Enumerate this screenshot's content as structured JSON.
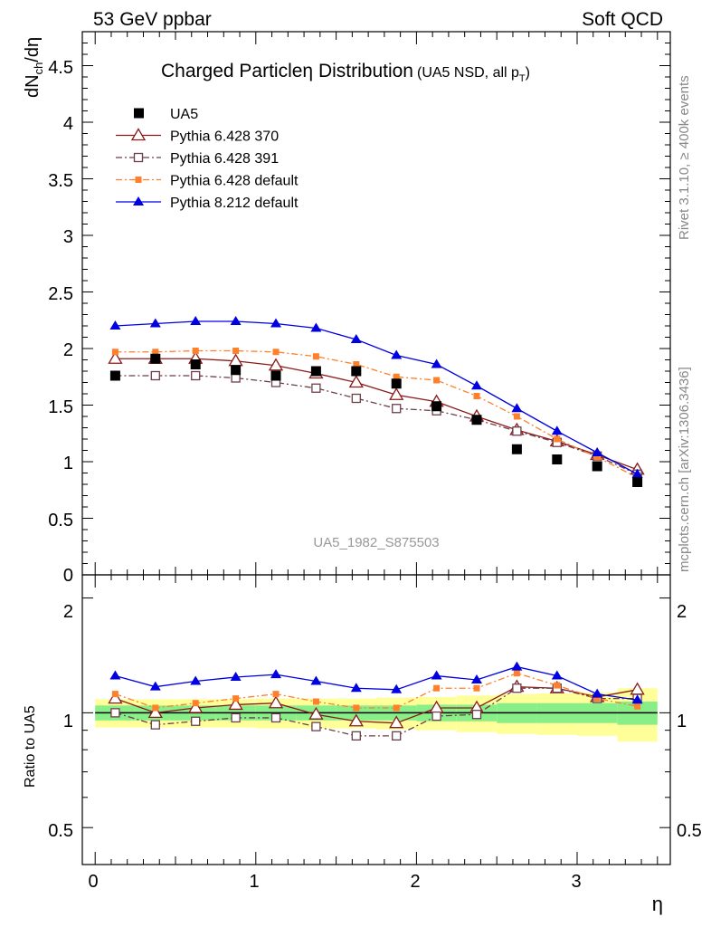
{
  "header": {
    "left": "53 GeV ppbar",
    "right": "Soft QCD"
  },
  "side": {
    "top": "Rivet 3.1.10, ≥ 400k events",
    "bottom": "mcplots.cern.ch [arXiv:1306.3436]"
  },
  "chart_data": {
    "type": "line",
    "title_main": "Charged Particle",
    "title_eta": "η",
    "title_rest": " Distribution",
    "title_sub": "(UA5 NSD, all p",
    "title_sub_idx": "T",
    "title_sub_end": ")",
    "ylabel_top": "dN",
    "ylabel_sub": "ch",
    "ylabel_end": "/dη",
    "ylabel_ratio": "Ratio to UA5",
    "xlabel": "η",
    "watermark": "UA5_1982_S875503",
    "xlim": [
      -0.08,
      3.58
    ],
    "ylim_main": [
      0,
      4.8
    ],
    "ylim_ratio": [
      0.4,
      2.3
    ],
    "x_ticks": [
      "0",
      "1",
      "2",
      "3"
    ],
    "y_ticks_main": [
      "0.5",
      "1",
      "1.5",
      "2",
      "2.5",
      "3",
      "3.5",
      "4",
      "4.5"
    ],
    "y_ticks_ratio": [
      "0.5",
      "1",
      "2"
    ],
    "y_tick_main_cut": "0",
    "x": [
      0.125,
      0.375,
      0.625,
      0.875,
      1.125,
      1.375,
      1.625,
      1.875,
      2.125,
      2.375,
      2.625,
      2.875,
      3.125,
      3.375
    ],
    "band_edges": [
      0,
      0.25,
      0.5,
      0.75,
      1.0,
      1.25,
      1.5,
      1.75,
      2.0,
      2.25,
      2.5,
      2.75,
      3.0,
      3.25,
      3.5
    ],
    "band_green": [
      0.045,
      0.045,
      0.045,
      0.045,
      0.045,
      0.045,
      0.045,
      0.045,
      0.05,
      0.05,
      0.06,
      0.06,
      0.06,
      0.07
    ],
    "band_yellow": [
      0.085,
      0.085,
      0.085,
      0.085,
      0.09,
      0.09,
      0.09,
      0.095,
      0.1,
      0.11,
      0.12,
      0.125,
      0.13,
      0.16
    ],
    "series": [
      {
        "name": "UA5",
        "color": "#000000",
        "marker": "filled-square",
        "line": "none",
        "values": [
          1.76,
          1.91,
          1.86,
          1.81,
          1.76,
          1.8,
          1.8,
          1.69,
          1.49,
          1.37,
          1.11,
          1.02,
          0.96,
          0.82
        ]
      },
      {
        "name": "Pythia 6.428 370",
        "color": "#8b1a1a",
        "marker": "open-triangle",
        "line": "solid",
        "values": [
          1.91,
          1.91,
          1.91,
          1.89,
          1.85,
          1.78,
          1.7,
          1.59,
          1.53,
          1.4,
          1.28,
          1.18,
          1.06,
          0.93
        ],
        "ratio": [
          1.09,
          1.0,
          1.03,
          1.05,
          1.06,
          0.99,
          0.95,
          0.94,
          1.03,
          1.03,
          1.17,
          1.16,
          1.1,
          1.15
        ]
      },
      {
        "name": "Pythia 6.428 391",
        "color": "#6b3f4a",
        "marker": "open-square",
        "line": "dashdot",
        "values": [
          1.76,
          1.76,
          1.76,
          1.74,
          1.7,
          1.65,
          1.56,
          1.47,
          1.45,
          1.37,
          1.27,
          1.17,
          1.05,
          0.89
        ],
        "ratio": [
          1.0,
          0.93,
          0.95,
          0.97,
          0.97,
          0.92,
          0.87,
          0.87,
          0.98,
          0.99,
          1.16,
          1.16,
          1.09,
          1.09
        ]
      },
      {
        "name": "Pythia 6.428 default",
        "color": "#ff7f2a",
        "marker": "filled-square",
        "line": "dashdot",
        "values": [
          1.97,
          1.97,
          1.98,
          1.98,
          1.97,
          1.93,
          1.86,
          1.75,
          1.72,
          1.58,
          1.4,
          1.2,
          1.04,
          0.86
        ],
        "ratio": [
          1.12,
          1.03,
          1.06,
          1.09,
          1.12,
          1.07,
          1.03,
          1.03,
          1.16,
          1.16,
          1.27,
          1.18,
          1.09,
          1.04
        ]
      },
      {
        "name": "Pythia 8.212 default",
        "color": "#0000e0",
        "marker": "filled-triangle",
        "line": "solid",
        "values": [
          2.2,
          2.22,
          2.24,
          2.24,
          2.22,
          2.18,
          2.08,
          1.94,
          1.86,
          1.67,
          1.47,
          1.27,
          1.08,
          0.89
        ],
        "ratio": [
          1.25,
          1.17,
          1.21,
          1.24,
          1.26,
          1.21,
          1.16,
          1.15,
          1.25,
          1.22,
          1.32,
          1.25,
          1.12,
          1.08
        ]
      }
    ]
  }
}
